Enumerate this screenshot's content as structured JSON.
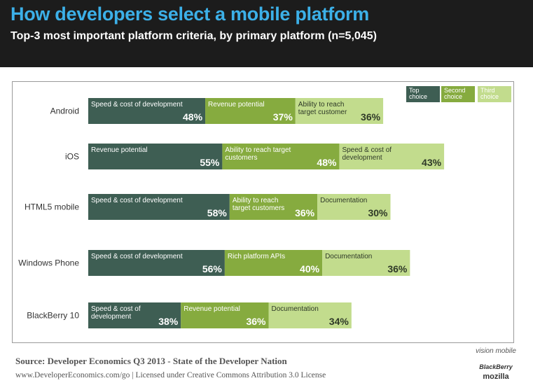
{
  "header": {
    "title": "How developers select a mobile platform",
    "subtitle": "Top-3 most important platform criteria, by primary platform (n=5,045)"
  },
  "colors": {
    "top": "#3e5e53",
    "second": "#86ab3f",
    "third": "#c2dc8d",
    "header_bg": "#1c1c1c",
    "title": "#3cb0e8"
  },
  "chart_data": {
    "type": "bar",
    "orientation": "horizontal",
    "stacked": true,
    "categories": [
      "Android",
      "iOS",
      "HTML5 mobile",
      "Windows Phone",
      "BlackBerry 10"
    ],
    "legend": {
      "position": "top-right",
      "entries": [
        {
          "key": "top",
          "label": "Top choice"
        },
        {
          "key": "second",
          "label": "Second choice"
        },
        {
          "key": "third",
          "label": "Third choice"
        }
      ]
    },
    "rows": [
      {
        "platform": "Android",
        "segments": [
          {
            "rank": "top",
            "criterion": "Speed & cost of development",
            "value": 48,
            "label": "48%"
          },
          {
            "rank": "second",
            "criterion": "Revenue potential",
            "value": 37,
            "label": "37%"
          },
          {
            "rank": "third",
            "criterion": "Ability to reach target customer",
            "value": 36,
            "label": "36%"
          }
        ]
      },
      {
        "platform": "iOS",
        "segments": [
          {
            "rank": "top",
            "criterion": "Revenue potential",
            "value": 55,
            "label": "55%"
          },
          {
            "rank": "second",
            "criterion": "Ability to reach target customers",
            "value": 48,
            "label": "48%"
          },
          {
            "rank": "third",
            "criterion": "Speed & cost of development",
            "value": 43,
            "label": "43%"
          }
        ]
      },
      {
        "platform": "HTML5 mobile",
        "segments": [
          {
            "rank": "top",
            "criterion": "Speed & cost of development",
            "value": 58,
            "label": "58%"
          },
          {
            "rank": "second",
            "criterion": "Ability to reach target customers",
            "value": 36,
            "label": "36%"
          },
          {
            "rank": "third",
            "criterion": "Documentation",
            "value": 30,
            "label": "30%"
          }
        ]
      },
      {
        "platform": "Windows Phone",
        "segments": [
          {
            "rank": "top",
            "criterion": "Speed & cost of development",
            "value": 56,
            "label": "56%"
          },
          {
            "rank": "second",
            "criterion": "Rich platform APIs",
            "value": 40,
            "label": "40%"
          },
          {
            "rank": "third",
            "criterion": "Documentation",
            "value": 36,
            "label": "36%"
          }
        ]
      },
      {
        "platform": "BlackBerry 10",
        "segments": [
          {
            "rank": "top",
            "criterion": "Speed & cost of development",
            "value": 38,
            "label": "38%"
          },
          {
            "rank": "second",
            "criterion": "Revenue potential",
            "value": 36,
            "label": "36%"
          },
          {
            "rank": "third",
            "criterion": "Documentation",
            "value": 34,
            "label": "34%"
          }
        ]
      }
    ]
  },
  "footer": {
    "source": "Source: Developer Economics Q3 2013 - State of the Developer Nation",
    "license": "www.DeveloperEconomics.com/go | Licensed under Creative Commons Attribution 3.0 License",
    "logo_visionmobile": "vision mobile",
    "logo_blackberry": "BlackBerry",
    "logo_mozilla": "mozilla"
  }
}
